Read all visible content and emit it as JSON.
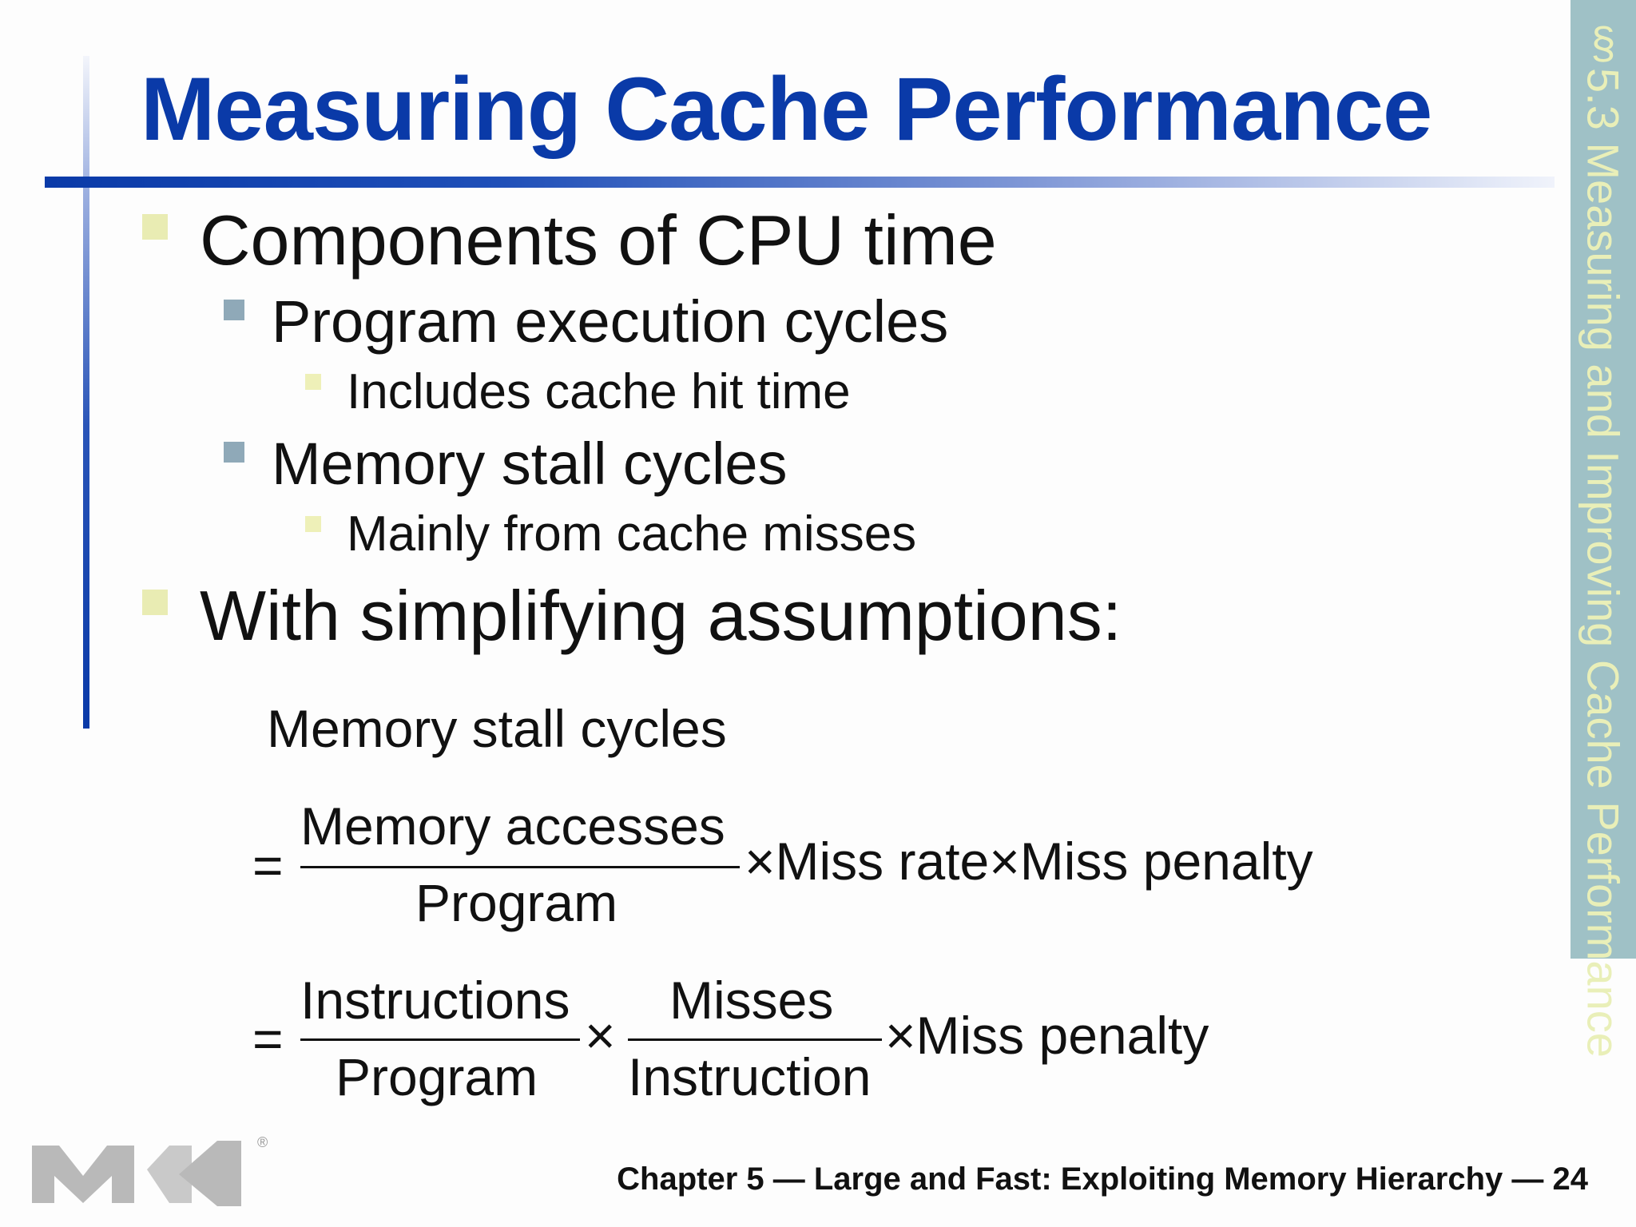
{
  "slide": {
    "title": "Measuring Cache Performance",
    "section_tab": "§5.3 Measuring and Improving Cache Performance",
    "bullets": [
      {
        "level": 1,
        "text": "Components of CPU time"
      },
      {
        "level": 2,
        "text": "Program execution cycles"
      },
      {
        "level": 3,
        "text": "Includes cache hit time"
      },
      {
        "level": 2,
        "text": "Memory stall cycles"
      },
      {
        "level": 3,
        "text": "Mainly from cache misses"
      },
      {
        "level": 1,
        "text": "With simplifying assumptions:"
      }
    ],
    "equation": {
      "lhs": "Memory stall cycles",
      "equals": "=",
      "line1": {
        "numerator": "Memory accesses",
        "denominator": "Program",
        "rest": "×Miss rate×Miss penalty"
      },
      "line2": {
        "frac1_numerator": "Instructions",
        "frac1_denominator": "Program",
        "times": "×",
        "frac2_numerator": "Misses",
        "frac2_denominator": "Instruction",
        "rest": "×Miss penalty"
      }
    },
    "footer": "Chapter 5 — Large and Fast: Exploiting Memory Hierarchy — 24",
    "logo": {
      "name": "mk-logo",
      "mark": "®"
    }
  },
  "colors": {
    "title": "#0a3aa8",
    "sidebar": "#9fc1c6",
    "sidebar_text": "#e9efb8",
    "bullet_l1": "#e9ecb3",
    "bullet_l2": "#8fa9b8"
  }
}
